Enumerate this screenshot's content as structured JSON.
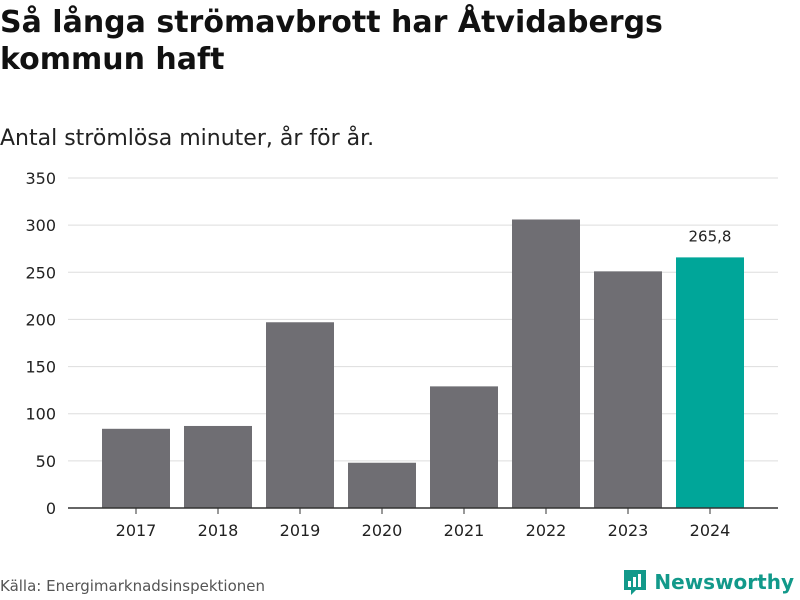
{
  "title": "Så långa strömavbrott har Åtvidabergs kommun haft",
  "subtitle": "Antal strömlösa minuter, år för år.",
  "source": "Källa: Energimarknadsinspektionen",
  "brand": "Newsworthy",
  "colors": {
    "bar": "#6f6e73",
    "highlight": "#00a699",
    "grid": "#dddddd",
    "axis": "#333333",
    "brand": "#12998a"
  },
  "chart_data": {
    "type": "bar",
    "categories": [
      "2017",
      "2018",
      "2019",
      "2020",
      "2021",
      "2022",
      "2023",
      "2024"
    ],
    "values": [
      84,
      87,
      197,
      48,
      129,
      306,
      251,
      265.8
    ],
    "highlight_index": 7,
    "data_labels": [
      {
        "index": 7,
        "text": "265,8"
      }
    ],
    "ylim": [
      0,
      350
    ],
    "yticks": [
      "0",
      "50",
      "100",
      "150",
      "200",
      "250",
      "300",
      "350"
    ],
    "ytick_values": [
      0,
      50,
      100,
      150,
      200,
      250,
      300,
      350
    ],
    "grid": true,
    "xlabel": "",
    "ylabel": ""
  }
}
